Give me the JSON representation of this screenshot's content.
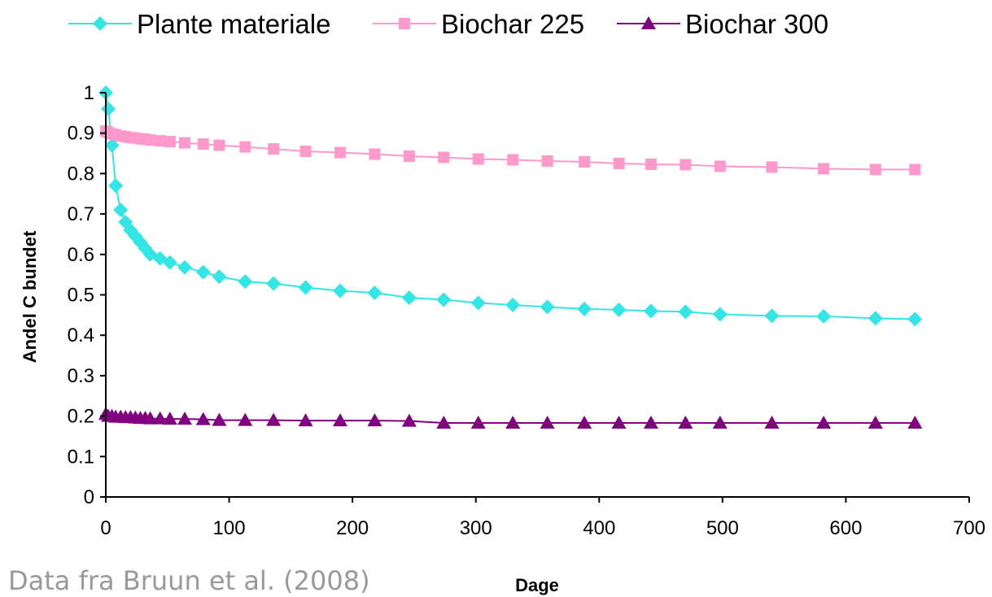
{
  "caption": "Data fra Bruun et al. (2008)",
  "chart_data": {
    "type": "line",
    "title": "",
    "xlabel": "Dage",
    "ylabel": "Andel C bundet",
    "xlim": [
      0,
      700
    ],
    "ylim": [
      0,
      1
    ],
    "xticks": [
      "0",
      "100",
      "200",
      "300",
      "400",
      "500",
      "600",
      "700"
    ],
    "yticks": [
      "0",
      "0.1",
      "0.2",
      "0.3",
      "0.4",
      "0.5",
      "0.6",
      "0.7",
      "0.8",
      "0.9",
      "1"
    ],
    "grid": false,
    "legend": "top",
    "series": [
      {
        "name": "Plante materiale",
        "color": "#33e6e6",
        "marker": "diamond",
        "x": [
          0,
          2,
          5,
          8,
          12,
          16,
          20,
          24,
          28,
          32,
          36,
          44,
          52,
          64,
          79,
          92,
          113,
          136,
          162,
          190,
          218,
          246,
          274,
          302,
          330,
          358,
          388,
          416,
          442,
          470,
          498,
          540,
          582,
          624,
          656
        ],
        "y": [
          1.0,
          0.96,
          0.87,
          0.77,
          0.71,
          0.68,
          0.66,
          0.645,
          0.63,
          0.615,
          0.6,
          0.59,
          0.58,
          0.568,
          0.556,
          0.545,
          0.533,
          0.528,
          0.518,
          0.51,
          0.505,
          0.493,
          0.488,
          0.48,
          0.475,
          0.47,
          0.465,
          0.463,
          0.46,
          0.458,
          0.452,
          0.448,
          0.447,
          0.442,
          0.44
        ]
      },
      {
        "name": "Biochar 225",
        "color": "#ff99cc",
        "marker": "square",
        "x": [
          0,
          2,
          5,
          8,
          12,
          16,
          20,
          24,
          28,
          32,
          36,
          44,
          52,
          64,
          79,
          92,
          113,
          136,
          162,
          190,
          218,
          246,
          274,
          302,
          330,
          358,
          388,
          416,
          442,
          470,
          498,
          540,
          582,
          624,
          656
        ],
        "y": [
          0.905,
          0.902,
          0.898,
          0.896,
          0.893,
          0.891,
          0.889,
          0.888,
          0.886,
          0.885,
          0.883,
          0.881,
          0.879,
          0.876,
          0.873,
          0.87,
          0.866,
          0.861,
          0.855,
          0.852,
          0.848,
          0.843,
          0.84,
          0.836,
          0.834,
          0.831,
          0.829,
          0.825,
          0.823,
          0.822,
          0.818,
          0.816,
          0.812,
          0.81,
          0.81
        ]
      },
      {
        "name": "Biochar 300",
        "color": "#800080",
        "marker": "triangle",
        "x": [
          0,
          2,
          5,
          8,
          12,
          16,
          20,
          24,
          28,
          32,
          36,
          44,
          52,
          64,
          79,
          92,
          113,
          136,
          162,
          190,
          218,
          246,
          274,
          302,
          330,
          358,
          388,
          416,
          442,
          470,
          498,
          540,
          582,
          624,
          656
        ],
        "y": [
          0.205,
          0.2,
          0.2,
          0.198,
          0.198,
          0.197,
          0.197,
          0.196,
          0.195,
          0.195,
          0.194,
          0.194,
          0.193,
          0.193,
          0.192,
          0.19,
          0.19,
          0.19,
          0.189,
          0.189,
          0.189,
          0.188,
          0.183,
          0.183,
          0.183,
          0.183,
          0.183,
          0.183,
          0.183,
          0.183,
          0.183,
          0.183,
          0.183,
          0.183,
          0.183
        ]
      }
    ]
  }
}
